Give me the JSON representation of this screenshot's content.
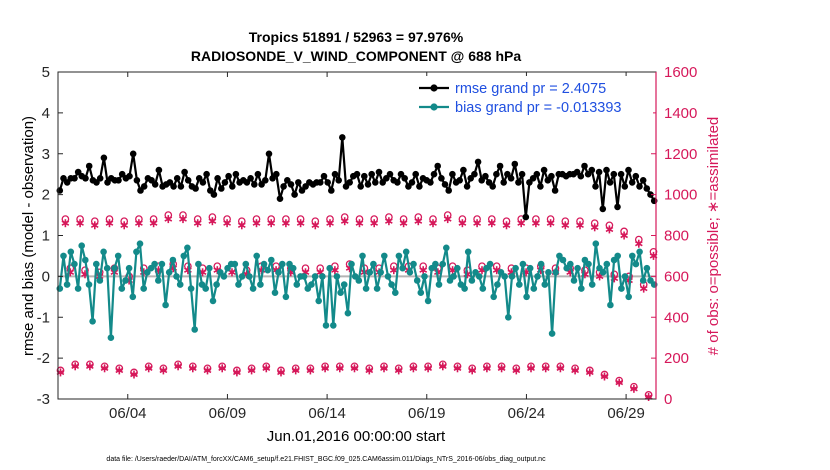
{
  "chart_data": {
    "type": "line",
    "title": "Tropics 51891 / 52963 = 97.976%",
    "subtitle": "RADIOSONDE_V_WIND_COMPONENT @ 688 hPa",
    "xlabel": "Jun.01,2016 00:00:00 start",
    "ylabel": "rmse and bias (model - observation)",
    "y2label": "# of obs: o=possible; ∗=assimilated",
    "footer": "data file: /Users/raeder/DAI/ATM_forcXX/CAM6_setup/f.e21.FHIST_BGC.f09_025.CAM6assim.011/Diags_NTrS_2016-06/obs_diag_output.nc",
    "xlim": [
      0.5,
      30.5
    ],
    "ylim": [
      -3,
      5
    ],
    "y2lim": [
      0,
      1600
    ],
    "xticks": [
      {
        "value": 4,
        "label": "06/04"
      },
      {
        "value": 9,
        "label": "06/09"
      },
      {
        "value": 14,
        "label": "06/14"
      },
      {
        "value": 19,
        "label": "06/19"
      },
      {
        "value": 24,
        "label": "06/24"
      },
      {
        "value": 29,
        "label": "06/29"
      }
    ],
    "yticks": [
      "-3",
      "-2",
      "-1",
      "0",
      "1",
      "2",
      "3",
      "4",
      "5"
    ],
    "y2ticks": [
      "0",
      "200",
      "400",
      "600",
      "800",
      "1000",
      "1200",
      "1400",
      "1600"
    ],
    "legend_position": "top-right",
    "colors": {
      "rmse": "#000000",
      "bias": "#138a8a",
      "obs": "#d6185a",
      "zero_line": "#b4b4b4",
      "legend_text": "#1f4fe0"
    },
    "series": [
      {
        "name": "rmse grand pr = 2.4075",
        "values": [
          2.1,
          2.4,
          2.3,
          2.4,
          2.4,
          2.55,
          2.45,
          2.4,
          2.7,
          2.35,
          2.3,
          2.4,
          2.9,
          2.3,
          2.4,
          2.35,
          2.35,
          2.5,
          2.4,
          2.45,
          3.0,
          2.35,
          2.1,
          2.2,
          2.4,
          2.35,
          2.25,
          2.6,
          2.2,
          2.25,
          2.3,
          2.2,
          2.4,
          2.2,
          2.55,
          2.35,
          2.2,
          2.15,
          2.4,
          2.3,
          2.5,
          2.1,
          2.0,
          2.4,
          2.15,
          2.3,
          2.45,
          2.2,
          2.5,
          2.3,
          2.35,
          2.3,
          2.4,
          2.25,
          2.5,
          2.25,
          2.35,
          3.0,
          2.4,
          2.5,
          1.9,
          2.2,
          2.35,
          2.25,
          2.0,
          2.3,
          2.1,
          2.2,
          2.3,
          2.25,
          2.3,
          2.3,
          2.45,
          2.3,
          2.1,
          2.5,
          2.35,
          3.4,
          2.2,
          2.3,
          2.45,
          2.5,
          2.2,
          2.45,
          2.25,
          2.5,
          2.3,
          2.55,
          2.3,
          2.4,
          2.5,
          2.35,
          2.3,
          2.5,
          2.4,
          2.2,
          2.3,
          2.5,
          2.2,
          2.4,
          2.35,
          2.3,
          2.5,
          2.7,
          2.4,
          2.25,
          2.1,
          2.5,
          2.3,
          2.35,
          2.6,
          2.2,
          2.4,
          2.5,
          2.8,
          2.35,
          2.45,
          2.3,
          2.2,
          2.5,
          2.7,
          2.3,
          2.5,
          2.4,
          2.75,
          2.3,
          2.5,
          1.45,
          2.3,
          2.4,
          2.5,
          2.2,
          2.6,
          2.35,
          2.45,
          2.1,
          2.5,
          2.5,
          2.45,
          2.5,
          2.5,
          2.55,
          2.45,
          2.7,
          2.5,
          2.6,
          2.2,
          2.55,
          1.65,
          2.6,
          2.3,
          2.5,
          1.7,
          2.5,
          2.2,
          2.6,
          2.3,
          2.45,
          2.2,
          2.35,
          2.15,
          2.0,
          1.85
        ]
      },
      {
        "name": "bias grand pr = -0.013393",
        "values": [
          -0.3,
          0.5,
          -0.2,
          0.6,
          0.3,
          -0.3,
          0.75,
          0.4,
          -0.2,
          -1.1,
          0.3,
          -0.1,
          0.6,
          0.2,
          -1.5,
          0.2,
          0.5,
          -0.3,
          -0.1,
          0.2,
          -0.5,
          0.6,
          0.8,
          -0.3,
          0.1,
          0.2,
          0.3,
          -0.1,
          0.3,
          -0.7,
          0.1,
          0.4,
          0.0,
          -0.2,
          0.5,
          0.7,
          -0.3,
          -1.3,
          0.3,
          -0.2,
          -0.3,
          0.2,
          -0.6,
          -0.2,
          0.1,
          0.0,
          0.2,
          0.3,
          0.3,
          -0.2,
          0.0,
          0.3,
          0.0,
          -0.3,
          0.5,
          -0.2,
          0.3,
          0.15,
          0.4,
          -0.4,
          0.1,
          0.3,
          -0.5,
          0.3,
          0.2,
          -0.2,
          0.0,
          0.0,
          -0.3,
          -0.2,
          0.0,
          -0.6,
          0.0,
          -1.2,
          0.2,
          -1.2,
          0.0,
          -0.4,
          -0.2,
          -0.9,
          0.3,
          0.0,
          -0.1,
          0.5,
          -0.3,
          0.1,
          0.3,
          -0.3,
          0.1,
          0.5,
          0.0,
          -0.2,
          -0.4,
          0.5,
          0.2,
          0.6,
          0.1,
          0.3,
          -0.1,
          -0.4,
          0.0,
          -0.6,
          0.2,
          0.3,
          -0.2,
          0.3,
          0.7,
          -0.1,
          0.0,
          0.2,
          -0.2,
          -0.3,
          0.6,
          -0.1,
          0.1,
          0.0,
          -0.3,
          0.2,
          0.3,
          -0.5,
          -0.2,
          0.1,
          0.0,
          -1.0,
          0.0,
          0.2,
          -0.2,
          0.3,
          -0.5,
          0.2,
          -0.3,
          0.0,
          0.3,
          -0.2,
          0.1,
          -1.4,
          0.1,
          0.5,
          0.4,
          0.2,
          0.3,
          -0.1,
          0.2,
          -0.3,
          0.4,
          0.3,
          -0.2,
          0.8,
          0.2,
          0.1,
          0.3,
          -0.7,
          0.4,
          0.5,
          -0.3,
          0.0,
          -0.5,
          0.5,
          0.3,
          0.6,
          -0.1,
          0.2,
          -0.1,
          -0.2
        ]
      },
      {
        "name": "obs possible",
        "values": [
          140,
          880,
          640,
          170,
          880,
          630,
          170,
          870,
          620,
          160,
          880,
          640,
          150,
          870,
          600,
          130,
          880,
          640,
          160,
          880,
          650,
          150,
          900,
          660,
          170,
          900,
          650,
          160,
          880,
          640,
          150,
          890,
          650,
          160,
          880,
          640,
          140,
          870,
          630,
          150,
          880,
          650,
          160,
          880,
          650,
          140,
          880,
          640,
          150,
          880,
          640,
          150,
          870,
          640,
          160,
          880,
          650,
          160,
          890,
          660,
          160,
          880,
          640,
          150,
          880,
          640,
          160,
          890,
          650,
          150,
          880,
          650,
          160,
          890,
          650,
          160,
          880,
          640,
          170,
          900,
          650,
          160,
          880,
          630,
          150,
          880,
          650,
          160,
          880,
          650,
          160,
          870,
          640,
          150,
          880,
          640,
          160,
          880,
          650,
          160,
          880,
          640,
          160,
          870,
          640,
          150,
          870,
          630,
          140,
          860,
          620,
          120,
          850,
          610,
          90,
          820,
          600,
          60,
          780,
          560,
          20,
          720
        ]
      },
      {
        "name": "obs assimilated",
        "values": [
          130,
          860,
          620,
          160,
          860,
          610,
          160,
          850,
          600,
          150,
          860,
          620,
          140,
          850,
          580,
          120,
          860,
          620,
          150,
          860,
          630,
          140,
          880,
          640,
          160,
          880,
          630,
          150,
          860,
          620,
          140,
          870,
          630,
          150,
          860,
          620,
          130,
          850,
          610,
          140,
          860,
          630,
          150,
          860,
          630,
          130,
          860,
          620,
          140,
          860,
          620,
          140,
          850,
          620,
          150,
          860,
          630,
          150,
          870,
          640,
          150,
          860,
          620,
          140,
          860,
          620,
          150,
          870,
          630,
          140,
          860,
          630,
          150,
          870,
          630,
          150,
          860,
          620,
          160,
          880,
          630,
          150,
          860,
          610,
          140,
          860,
          630,
          150,
          860,
          630,
          150,
          850,
          620,
          140,
          860,
          620,
          150,
          860,
          630,
          150,
          860,
          620,
          150,
          850,
          620,
          140,
          850,
          610,
          130,
          840,
          600,
          110,
          830,
          590,
          80,
          800,
          580,
          50,
          760,
          540,
          10,
          700
        ]
      }
    ]
  }
}
